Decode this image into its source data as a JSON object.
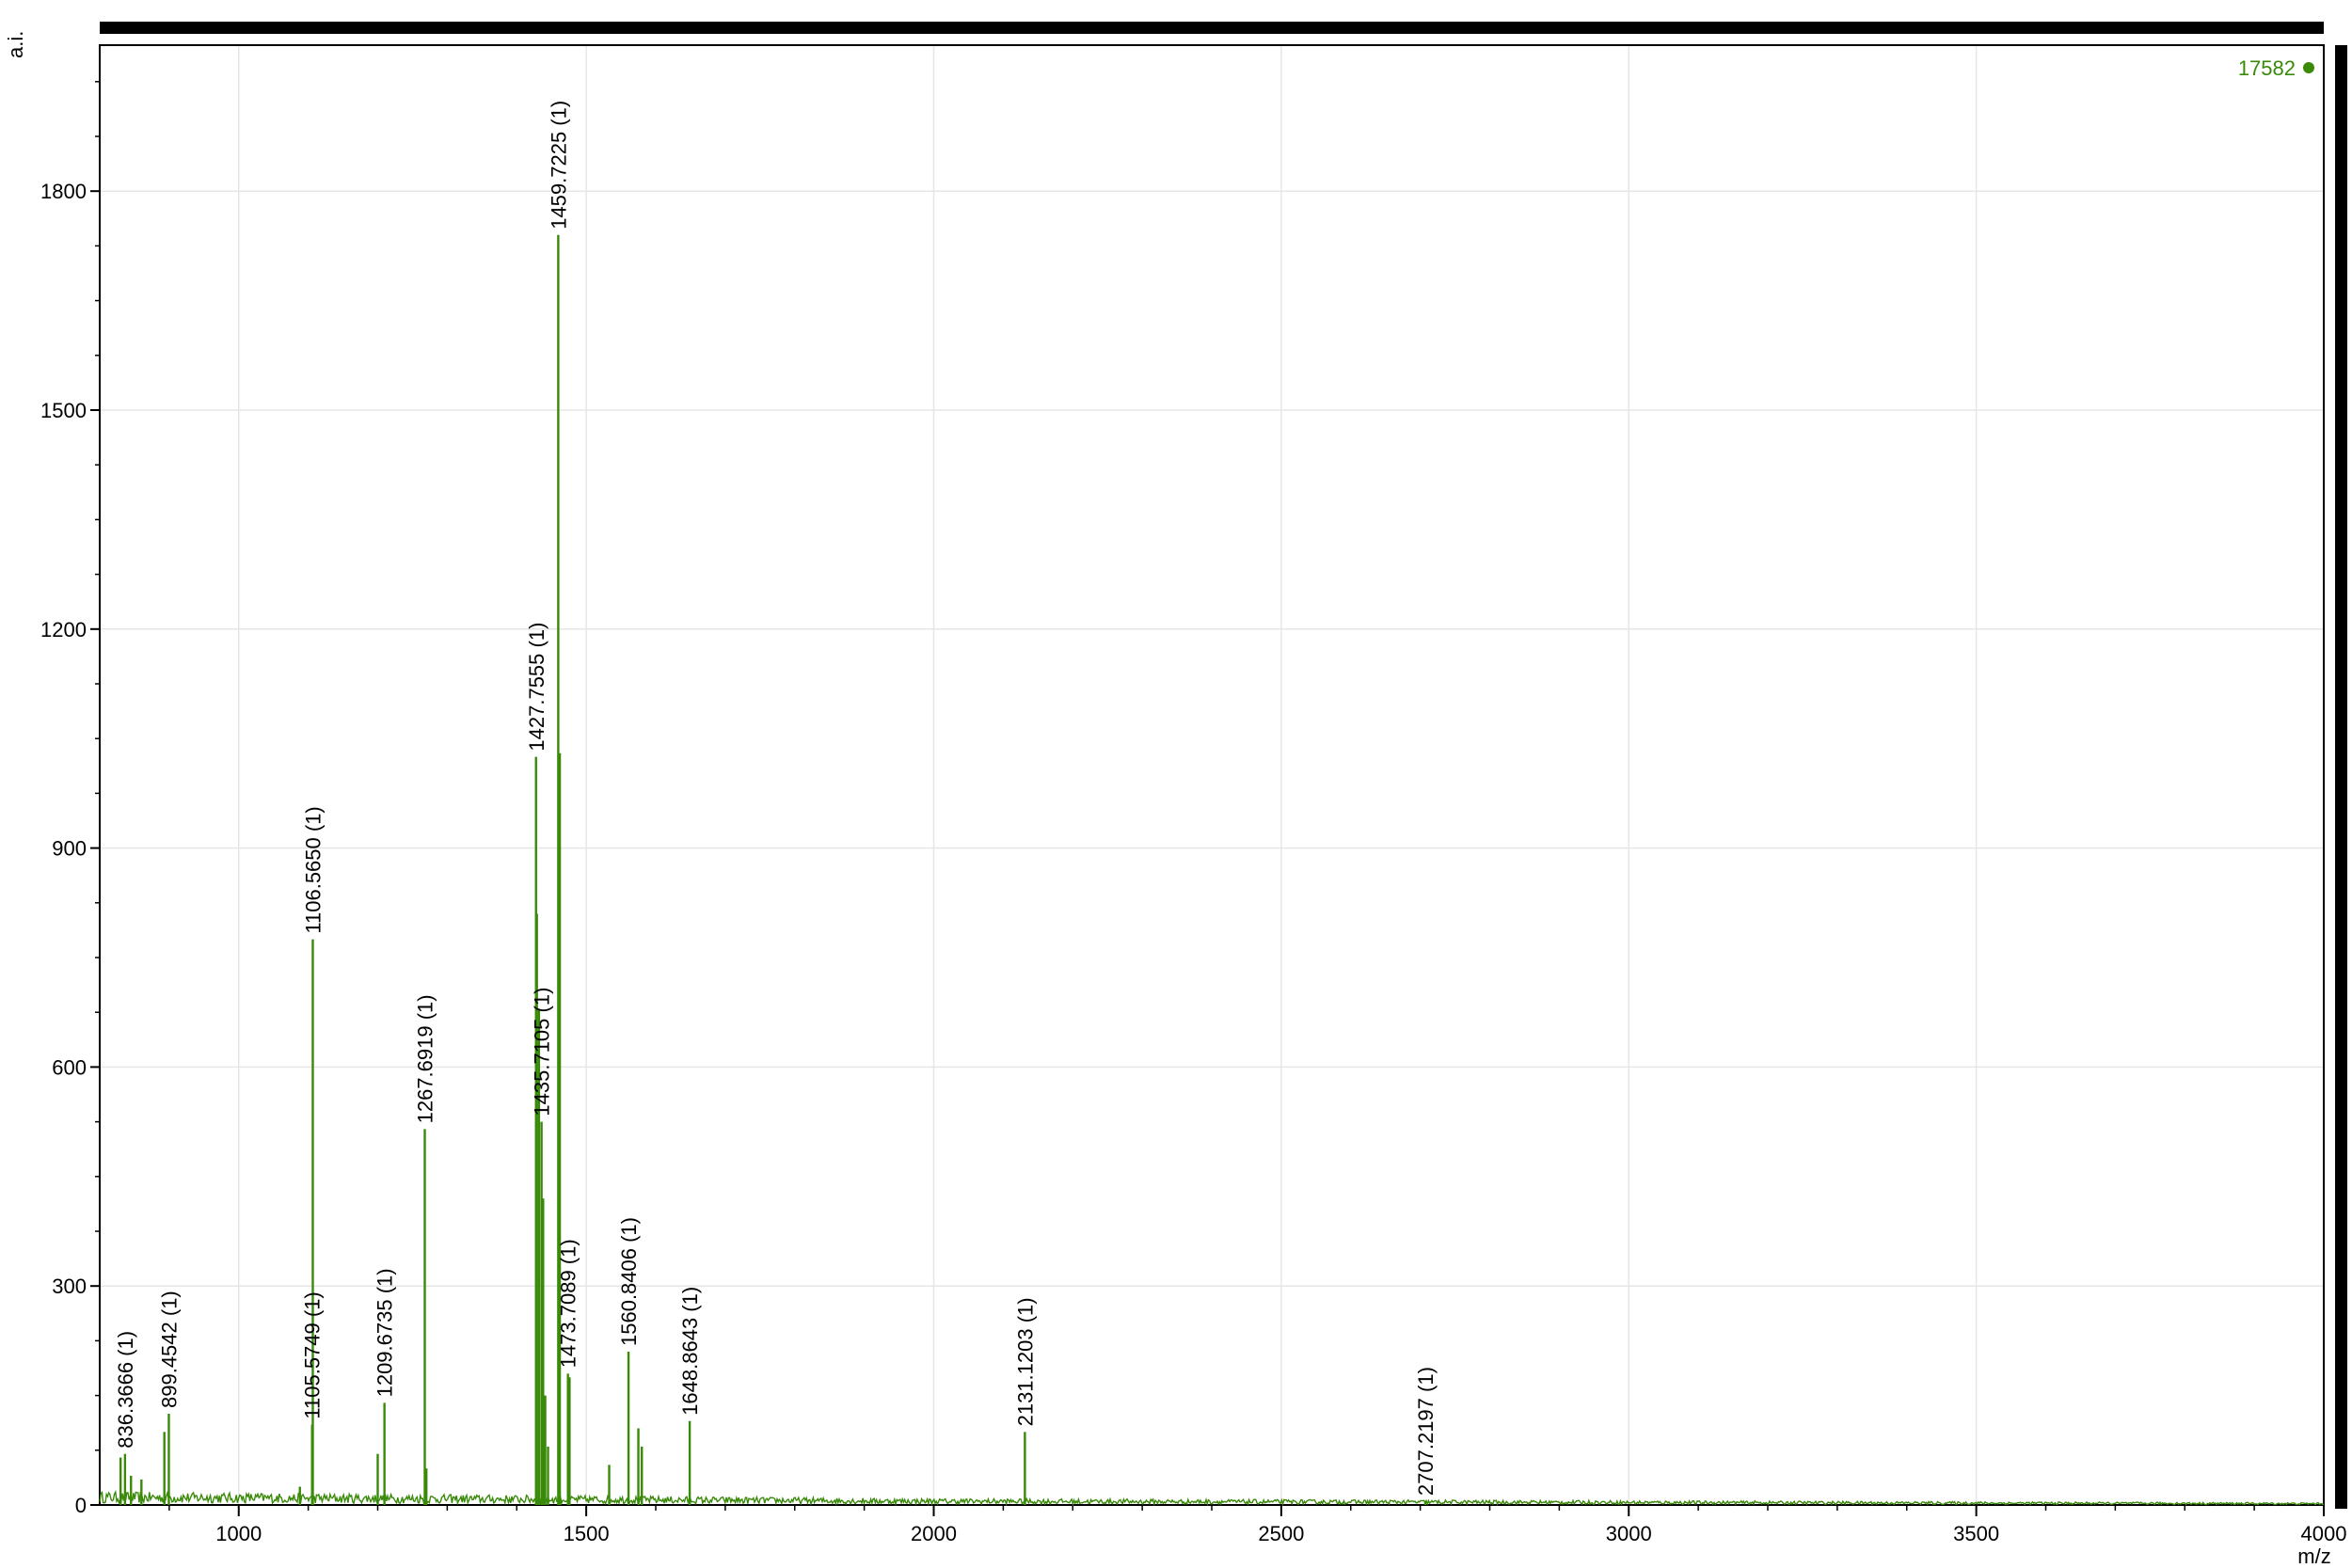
{
  "chart_data": {
    "type": "line",
    "title": "",
    "xlabel": "m/z",
    "ylabel": "a.i.",
    "xlim": [
      800,
      4000
    ],
    "ylim": [
      0,
      2000
    ],
    "x_ticks": [
      1000,
      1500,
      2000,
      2500,
      3000,
      3500,
      4000
    ],
    "y_ticks": [
      0,
      300,
      600,
      900,
      1200,
      1500,
      1800
    ],
    "grid": true,
    "line_color": "#3a8a0a",
    "legend": {
      "label": "17582",
      "position": "top-right",
      "color": "#3a8a0a"
    },
    "peaks": [
      {
        "mz": 836.3666,
        "intensity": 70,
        "label": "836.3666 (1)"
      },
      {
        "mz": 899.4542,
        "intensity": 125,
        "label": "899.4542 (1)"
      },
      {
        "mz": 1105.5749,
        "intensity": 110,
        "label": "1105.5749 (1)"
      },
      {
        "mz": 1106.565,
        "intensity": 775,
        "label": "1106.5650 (1)"
      },
      {
        "mz": 1209.6735,
        "intensity": 140,
        "label": "1209.6735 (1)"
      },
      {
        "mz": 1267.6919,
        "intensity": 515,
        "label": "1267.6919 (1)"
      },
      {
        "mz": 1427.7555,
        "intensity": 1025,
        "label": "1427.7555 (1)"
      },
      {
        "mz": 1435.7105,
        "intensity": 525,
        "label": "1435.7105 (1)"
      },
      {
        "mz": 1459.7225,
        "intensity": 1740,
        "label": "1459.7225 (1)"
      },
      {
        "mz": 1473.7089,
        "intensity": 180,
        "label": "1473.7089 (1)"
      },
      {
        "mz": 1560.8406,
        "intensity": 210,
        "label": "1560.8406 (1)"
      },
      {
        "mz": 1648.8643,
        "intensity": 115,
        "label": "1648.8643 (1)"
      },
      {
        "mz": 2131.1203,
        "intensity": 100,
        "label": "2131.1203 (1)"
      },
      {
        "mz": 2707.2197,
        "intensity": 5,
        "label": "2707.2197 (1)"
      }
    ],
    "minor_peaks": [
      {
        "mz": 830,
        "intensity": 65
      },
      {
        "mz": 845,
        "intensity": 40
      },
      {
        "mz": 860,
        "intensity": 35
      },
      {
        "mz": 893,
        "intensity": 100
      },
      {
        "mz": 1088,
        "intensity": 25
      },
      {
        "mz": 1200,
        "intensity": 70
      },
      {
        "mz": 1270,
        "intensity": 50
      },
      {
        "mz": 1429,
        "intensity": 810
      },
      {
        "mz": 1432,
        "intensity": 680
      },
      {
        "mz": 1438,
        "intensity": 420
      },
      {
        "mz": 1441,
        "intensity": 150
      },
      {
        "mz": 1445,
        "intensity": 80
      },
      {
        "mz": 1462,
        "intensity": 1030
      },
      {
        "mz": 1476,
        "intensity": 175
      },
      {
        "mz": 1533,
        "intensity": 55
      },
      {
        "mz": 1575,
        "intensity": 105
      },
      {
        "mz": 1580,
        "intensity": 80
      }
    ]
  }
}
